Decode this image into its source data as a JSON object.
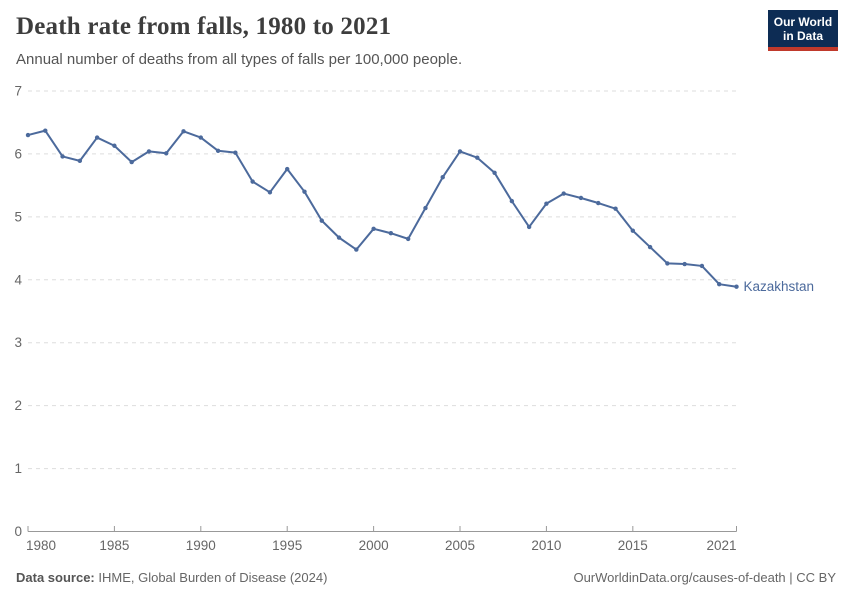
{
  "header": {
    "title": "Death rate from falls, 1980 to 2021",
    "subtitle": "Annual number of deaths from all types of falls per 100,000 people.",
    "logo": {
      "line1": "Our World",
      "line2": "in Data",
      "bg_color": "#0d2c54",
      "accent_color": "#c0392b"
    }
  },
  "chart_data": {
    "type": "line",
    "title": "Death rate from falls, 1980 to 2021",
    "xlabel": "",
    "ylabel": "",
    "x": [
      1980,
      1981,
      1982,
      1983,
      1984,
      1985,
      1986,
      1987,
      1988,
      1989,
      1990,
      1991,
      1992,
      1993,
      1994,
      1995,
      1996,
      1997,
      1998,
      1999,
      2000,
      2001,
      2002,
      2003,
      2004,
      2005,
      2006,
      2007,
      2008,
      2009,
      2010,
      2011,
      2012,
      2013,
      2014,
      2015,
      2016,
      2017,
      2018,
      2019,
      2020,
      2021
    ],
    "series": [
      {
        "name": "Kazakhstan",
        "color": "#4c6a9c",
        "values": [
          6.3,
          6.37,
          5.96,
          5.89,
          6.26,
          6.13,
          5.87,
          6.04,
          6.01,
          6.36,
          6.26,
          6.05,
          6.02,
          5.56,
          5.39,
          5.76,
          5.4,
          4.94,
          4.67,
          4.48,
          4.81,
          4.74,
          4.65,
          5.14,
          5.63,
          6.04,
          5.94,
          5.7,
          5.25,
          4.84,
          5.21,
          5.37,
          5.3,
          5.22,
          5.13,
          4.78,
          4.52,
          4.26,
          4.25,
          4.22,
          3.93,
          3.89
        ]
      }
    ],
    "xlim": [
      1980,
      2021
    ],
    "ylim": [
      0,
      7
    ],
    "yticks": [
      0,
      1,
      2,
      3,
      4,
      5,
      6,
      7
    ],
    "xticks": [
      1980,
      1985,
      1990,
      1995,
      2000,
      2005,
      2010,
      2015,
      2021
    ],
    "grid": "horizontal-dashed",
    "legend_position": "end-of-line",
    "entity_label": "Kazakhstan"
  },
  "colors": {
    "line": "#4c6a9c",
    "gridline": "#dddddd",
    "axis": "#999999",
    "tick_label": "#666666"
  },
  "footer": {
    "source_label": "Data source:",
    "source_text": " IHME, Global Burden of Disease (2024)",
    "credit": "OurWorldinData.org/causes-of-death | CC BY"
  }
}
